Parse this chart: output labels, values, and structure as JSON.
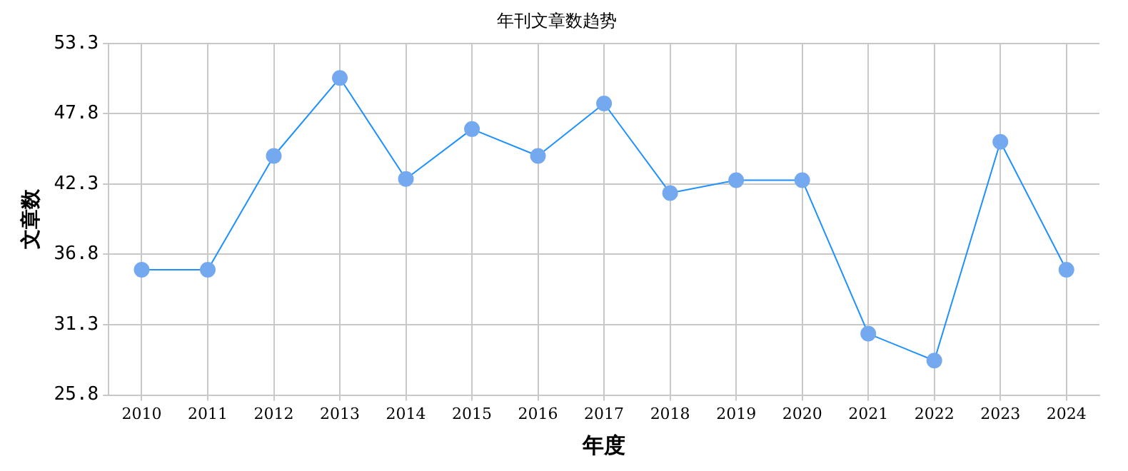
{
  "chart_data": {
    "type": "line",
    "title": "年刊文章数趋势",
    "xlabel": "年度",
    "ylabel": "文章数",
    "categories": [
      "2010",
      "2011",
      "2012",
      "2013",
      "2014",
      "2015",
      "2016",
      "2017",
      "2018",
      "2019",
      "2020",
      "2021",
      "2022",
      "2023",
      "2024"
    ],
    "series": [
      {
        "color": "#1e90ff",
        "values": [
          35.6,
          35.6,
          44.5,
          50.6,
          42.7,
          46.6,
          44.5,
          48.6,
          41.6,
          42.6,
          42.6,
          30.6,
          28.5,
          45.6,
          35.6
        ]
      }
    ],
    "ylim": [
      25.8,
      53.3
    ],
    "yticks": [
      25.8,
      31.3,
      36.8,
      42.3,
      47.8,
      53.3
    ],
    "grid": true,
    "marker": "circle",
    "line_style": "solid"
  }
}
